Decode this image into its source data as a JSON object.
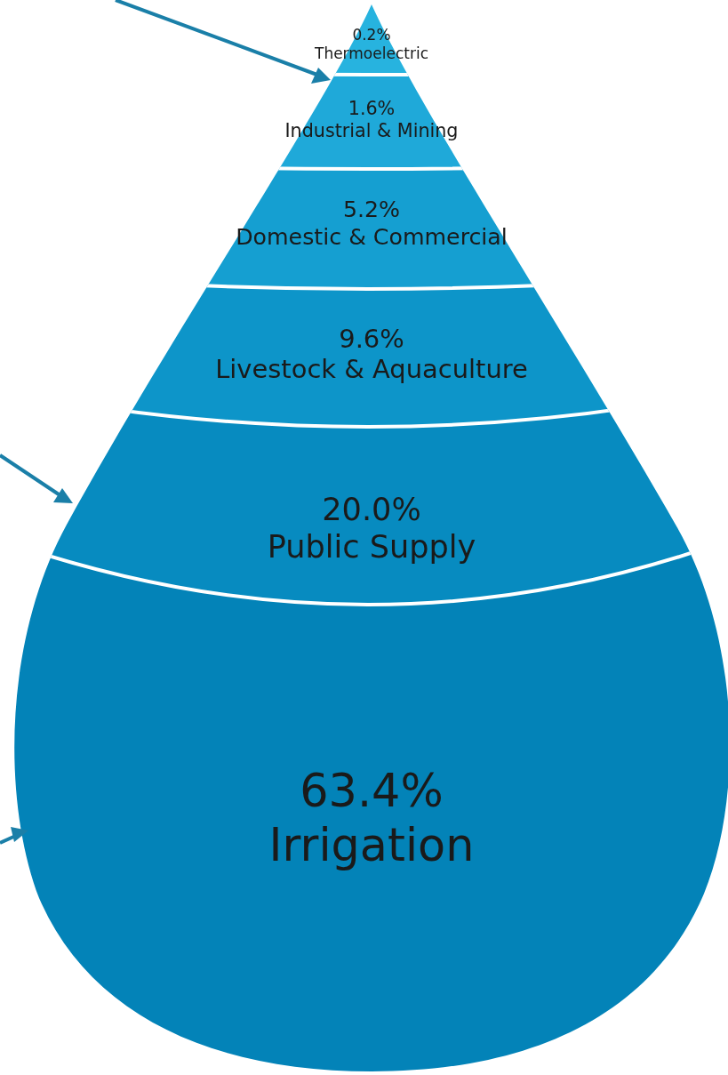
{
  "chart_data": {
    "type": "other",
    "categories": [
      "Thermoelectric",
      "Industrial & Mining",
      "Domestic & Commercial",
      "Livestock & Aquaculture",
      "Public Supply",
      "Irrigation"
    ],
    "values": [
      0.2,
      1.6,
      5.2,
      9.6,
      20.0,
      63.4
    ],
    "value_labels": [
      "0.2%",
      "1.6%",
      "5.2%",
      "9.6%",
      "20.0%",
      "63.4%"
    ],
    "colors": [
      "#27b3df",
      "#1fa9d9",
      "#159fd1",
      "#0d95c9",
      "#078bc0",
      "#0383b8"
    ]
  }
}
